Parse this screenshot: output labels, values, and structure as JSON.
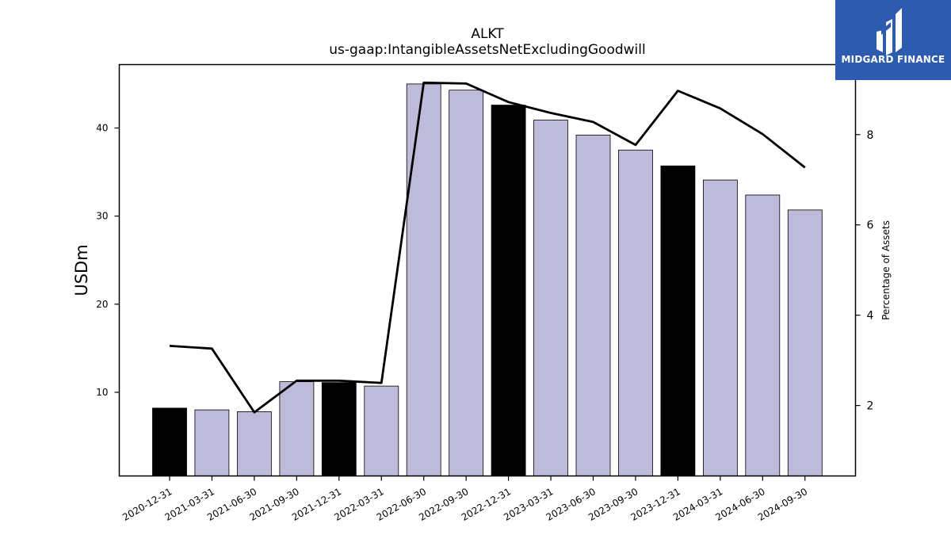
{
  "chart_data": {
    "type": "bar",
    "title": "ALKT",
    "subtitle": "us-gaap:IntangibleAssetsNetExcludingGoodwill",
    "ylabel": "USDm",
    "y2label": "Percentage of Assets",
    "categories": [
      "2020-12-31",
      "2021-03-31",
      "2021-06-30",
      "2021-09-30",
      "2021-12-31",
      "2022-03-31",
      "2022-06-30",
      "2022-09-30",
      "2022-12-31",
      "2023-03-31",
      "2023-06-30",
      "2023-09-30",
      "2023-12-31",
      "2024-03-31",
      "2024-06-30",
      "2024-09-30"
    ],
    "values": [
      8.2,
      8.0,
      7.8,
      11.2,
      11.1,
      10.7,
      45.0,
      44.3,
      42.6,
      40.9,
      39.2,
      37.5,
      35.7,
      34.1,
      32.4,
      30.7
    ],
    "bar_colors": [
      "#000000",
      "#bebad9",
      "#bebad9",
      "#bebad9",
      "#000000",
      "#bebad9",
      "#bebad9",
      "#bebad9",
      "#000000",
      "#bebad9",
      "#bebad9",
      "#bebad9",
      "#000000",
      "#bebad9",
      "#bebad9",
      "#bebad9"
    ],
    "series": [
      {
        "values": [
          8.2,
          8.0,
          7.8,
          11.2,
          11.1,
          10.7,
          45.0,
          44.3,
          42.6,
          40.9,
          39.2,
          37.5,
          35.7,
          34.1,
          32.4,
          30.7
        ]
      },
      {
        "axis": "right",
        "type": "line",
        "values": [
          3.32,
          3.26,
          1.85,
          2.55,
          2.55,
          2.5,
          9.15,
          9.13,
          8.72,
          8.48,
          8.28,
          7.77,
          8.97,
          8.58,
          8.01,
          7.27
        ]
      }
    ],
    "ylim": [
      0.5,
      47.2
    ],
    "y2lim": [
      0.44,
      9.55
    ],
    "yticks": [
      10,
      20,
      30,
      40
    ],
    "y2ticks": [
      2,
      4,
      6,
      8
    ],
    "grid": false,
    "colors": {
      "highlight_bar": "#000000",
      "bar": "#bebad9",
      "line": "#000000"
    }
  },
  "logo": {
    "text": "MIDGARD FINANCE",
    "background": "#2c5bb0"
  }
}
